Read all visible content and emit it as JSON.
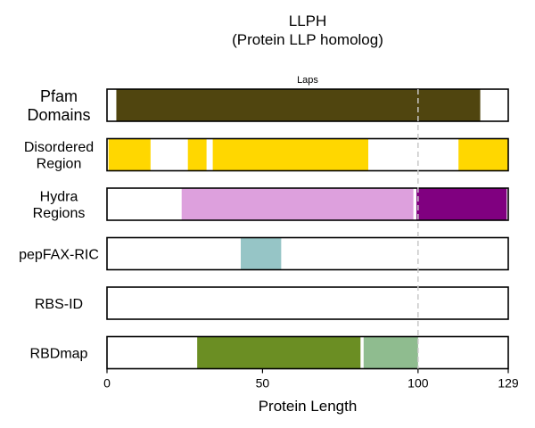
{
  "chart_data": {
    "type": "bar",
    "title": [
      "LLPH",
      "(Protein LLP homolog)"
    ],
    "xlabel": "Protein Length",
    "xlim": [
      0,
      129
    ],
    "xticks": [
      0,
      50,
      100,
      129
    ],
    "reference_line": {
      "x": 100,
      "label": "Laps"
    },
    "tracks": [
      {
        "label": [
          "Pfam",
          "Domains"
        ],
        "segments": [
          {
            "start": 3,
            "end": 120,
            "color": "#50450f"
          }
        ]
      },
      {
        "label": [
          "Disordered",
          "Region"
        ],
        "segments": [
          {
            "start": 0.5,
            "end": 14,
            "color": "#ffd700"
          },
          {
            "start": 26,
            "end": 32,
            "color": "#ffd700"
          },
          {
            "start": 34,
            "end": 84,
            "color": "#ffd700"
          },
          {
            "start": 113,
            "end": 129,
            "color": "#ffd700"
          }
        ]
      },
      {
        "label": [
          "Hydra",
          "Regions"
        ],
        "segments": [
          {
            "start": 24,
            "end": 98.5,
            "color": "#dda0dd"
          },
          {
            "start": 99.5,
            "end": 128.5,
            "color": "#800080"
          }
        ]
      },
      {
        "label": [
          "pepFAX-RIC"
        ],
        "segments": [
          {
            "start": 43,
            "end": 56,
            "color": "#96c5c6"
          }
        ]
      },
      {
        "label": [
          "RBS-ID"
        ],
        "segments": []
      },
      {
        "label": [
          "RBDmap"
        ],
        "segments": [
          {
            "start": 29,
            "end": 81.5,
            "color": "#6b8e23"
          },
          {
            "start": 82.5,
            "end": 100,
            "color": "#8fbc8f"
          }
        ]
      }
    ]
  }
}
